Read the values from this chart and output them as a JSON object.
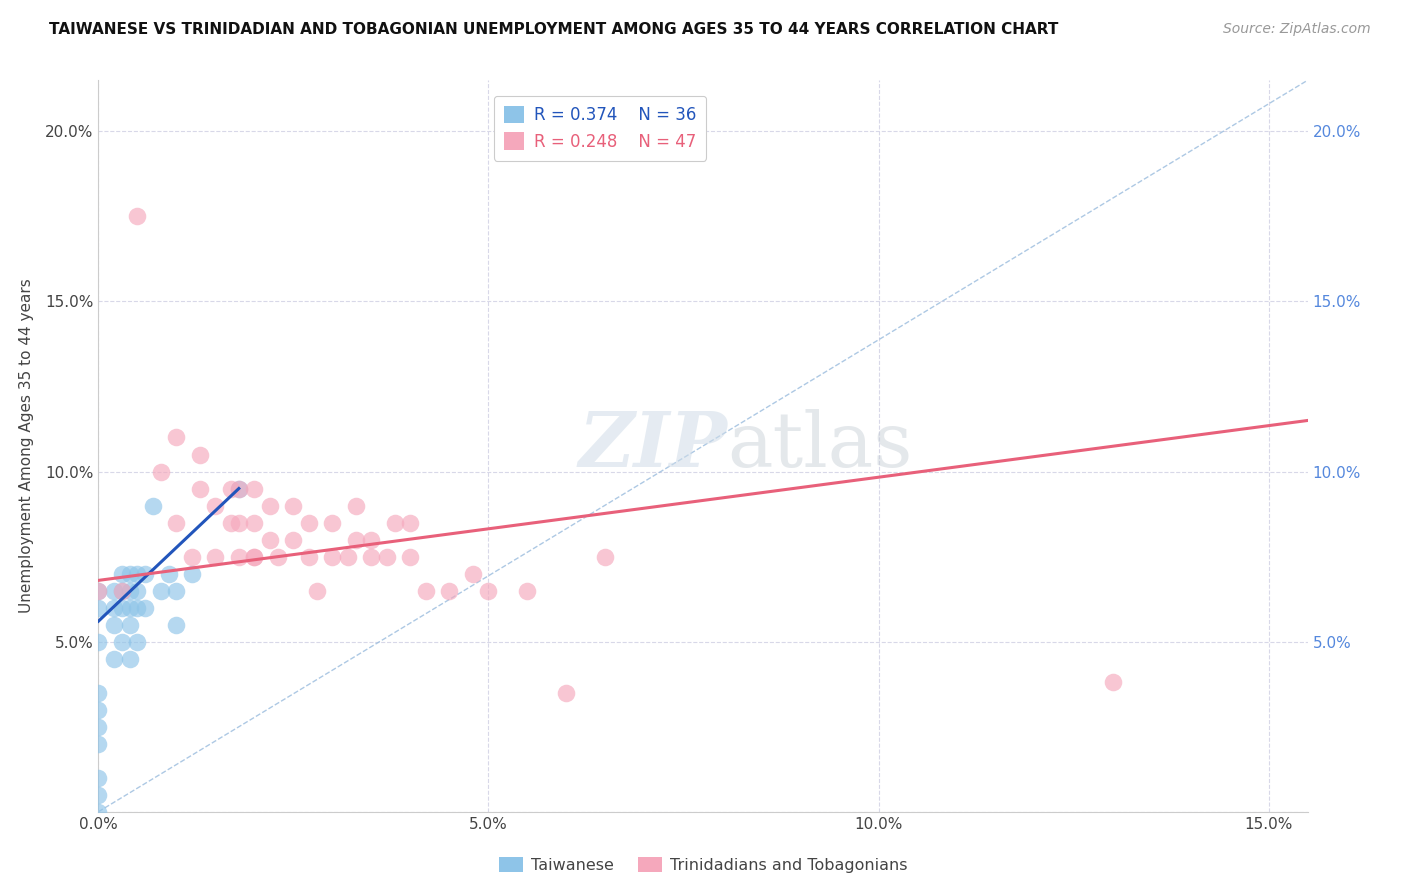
{
  "title": "TAIWANESE VS TRINIDADIAN AND TOBAGONIAN UNEMPLOYMENT AMONG AGES 35 TO 44 YEARS CORRELATION CHART",
  "source": "Source: ZipAtlas.com",
  "ylabel": "Unemployment Among Ages 35 to 44 years",
  "xlim": [
    0,
    0.155
  ],
  "ylim": [
    0,
    0.215
  ],
  "xticks": [
    0.0,
    0.05,
    0.1,
    0.15
  ],
  "yticks": [
    0.0,
    0.05,
    0.1,
    0.15,
    0.2
  ],
  "xticklabels": [
    "0.0%",
    "5.0%",
    "10.0%",
    "15.0%"
  ],
  "yticklabels": [
    "",
    "5.0%",
    "10.0%",
    "15.0%",
    "20.0%"
  ],
  "right_yticklabels": [
    "",
    "5.0%",
    "10.0%",
    "15.0%",
    "20.0%"
  ],
  "legend_r1": "R = 0.374",
  "legend_n1": "N = 36",
  "legend_r2": "R = 0.248",
  "legend_n2": "N = 47",
  "color_taiwanese": "#8ec4e8",
  "color_trinidadian": "#f5a8bc",
  "color_trend1": "#2255bb",
  "color_trend2": "#e8607a",
  "color_diag": "#99bbdd",
  "taiwanese_x": [
    0.0,
    0.0,
    0.0,
    0.0,
    0.0,
    0.0,
    0.0,
    0.0,
    0.0,
    0.0,
    0.002,
    0.002,
    0.002,
    0.002,
    0.003,
    0.003,
    0.003,
    0.003,
    0.004,
    0.004,
    0.004,
    0.004,
    0.004,
    0.005,
    0.005,
    0.005,
    0.005,
    0.006,
    0.006,
    0.007,
    0.008,
    0.009,
    0.01,
    0.01,
    0.012,
    0.018
  ],
  "taiwanese_y": [
    0.0,
    0.005,
    0.01,
    0.02,
    0.025,
    0.03,
    0.035,
    0.05,
    0.06,
    0.065,
    0.045,
    0.055,
    0.06,
    0.065,
    0.05,
    0.06,
    0.065,
    0.07,
    0.045,
    0.055,
    0.06,
    0.065,
    0.07,
    0.05,
    0.06,
    0.065,
    0.07,
    0.06,
    0.07,
    0.09,
    0.065,
    0.07,
    0.055,
    0.065,
    0.07,
    0.095
  ],
  "trinidadian_x": [
    0.0,
    0.003,
    0.005,
    0.008,
    0.01,
    0.01,
    0.012,
    0.013,
    0.013,
    0.015,
    0.015,
    0.017,
    0.017,
    0.018,
    0.018,
    0.018,
    0.02,
    0.02,
    0.02,
    0.02,
    0.022,
    0.022,
    0.023,
    0.025,
    0.025,
    0.027,
    0.027,
    0.028,
    0.03,
    0.03,
    0.032,
    0.033,
    0.033,
    0.035,
    0.035,
    0.037,
    0.038,
    0.04,
    0.04,
    0.042,
    0.045,
    0.048,
    0.05,
    0.055,
    0.06,
    0.065,
    0.13
  ],
  "trinidadian_y": [
    0.065,
    0.065,
    0.175,
    0.1,
    0.085,
    0.11,
    0.075,
    0.095,
    0.105,
    0.075,
    0.09,
    0.085,
    0.095,
    0.075,
    0.085,
    0.095,
    0.075,
    0.085,
    0.095,
    0.075,
    0.08,
    0.09,
    0.075,
    0.08,
    0.09,
    0.075,
    0.085,
    0.065,
    0.075,
    0.085,
    0.075,
    0.08,
    0.09,
    0.075,
    0.08,
    0.075,
    0.085,
    0.075,
    0.085,
    0.065,
    0.065,
    0.07,
    0.065,
    0.065,
    0.035,
    0.075,
    0.038
  ],
  "watermark_zip": "ZIP",
  "watermark_atlas": "atlas",
  "background_color": "#ffffff",
  "grid_color": "#d8d8e8",
  "right_tick_color": "#5588dd",
  "title_fontsize": 11,
  "tick_fontsize": 11
}
